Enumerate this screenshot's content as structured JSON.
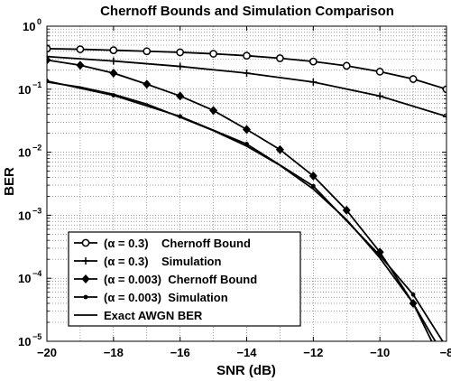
{
  "chart_data": {
    "type": "line",
    "title": "Chernoff Bounds and Simulation Comparison",
    "xlabel": "SNR (dB)",
    "ylabel": "BER",
    "xlim": [
      -20,
      -8
    ],
    "ylim": [
      1e-05,
      1
    ],
    "yscale": "log",
    "grid": true,
    "legend_position": "bottom-left",
    "x_ticks": [
      -20,
      -18,
      -16,
      -14,
      -12,
      -10,
      -8
    ],
    "y_ticks": [
      {
        "base": "10",
        "exp": "0",
        "value": 1
      },
      {
        "base": "10",
        "exp": "−1",
        "value": 0.1
      },
      {
        "base": "10",
        "exp": "−2",
        "value": 0.01
      },
      {
        "base": "10",
        "exp": "−3",
        "value": 0.001
      },
      {
        "base": "10",
        "exp": "−4",
        "value": 0.0001
      },
      {
        "base": "10",
        "exp": "−5",
        "value": 1e-05
      }
    ],
    "series": [
      {
        "name": "(α = 0.3)    Chernoff Bound",
        "marker": "circle",
        "x": [
          -20,
          -19,
          -18,
          -17,
          -16,
          -15,
          -14,
          -13,
          -12,
          -11,
          -10,
          -9,
          -8
        ],
        "y": [
          0.44,
          0.43,
          0.415,
          0.4,
          0.385,
          0.365,
          0.34,
          0.31,
          0.275,
          0.235,
          0.19,
          0.145,
          0.1
        ]
      },
      {
        "name": "(α = 0.3)    Simulation",
        "marker": "plus",
        "x": [
          -20,
          -18,
          -16,
          -14,
          -12,
          -10,
          -8
        ],
        "y": [
          0.33,
          0.28,
          0.23,
          0.18,
          0.13,
          0.078,
          0.037
        ]
      },
      {
        "name": "(α = 0.003)  Chernoff Bound",
        "marker": "diamond",
        "x": [
          -20,
          -19,
          -18,
          -17,
          -16,
          -15,
          -14,
          -13,
          -12,
          -11,
          -10,
          -9,
          -8
        ],
        "y": [
          0.29,
          0.24,
          0.18,
          0.12,
          0.078,
          0.046,
          0.023,
          0.011,
          0.0042,
          0.0012,
          0.00026,
          4e-05,
          3.3e-06
        ]
      },
      {
        "name": "(α = 0.003)  Simulation",
        "marker": "dot",
        "x": [
          -20,
          -18,
          -16,
          -14,
          -12,
          -10,
          -9,
          -8
        ],
        "y": [
          0.135,
          0.08,
          0.037,
          0.0135,
          0.0029,
          0.00023,
          5.5e-05,
          8e-06
        ]
      },
      {
        "name": "Exact AWGN BER",
        "marker": "none",
        "x": [
          -20,
          -19,
          -18,
          -17,
          -16,
          -15,
          -14,
          -13,
          -12,
          -11,
          -10,
          -9,
          -8.5,
          -8
        ],
        "y": [
          0.13,
          0.108,
          0.083,
          0.058,
          0.036,
          0.022,
          0.0125,
          0.0062,
          0.0026,
          0.00085,
          0.00021,
          4e-05,
          1.4e-05,
          5e-06
        ]
      }
    ]
  }
}
